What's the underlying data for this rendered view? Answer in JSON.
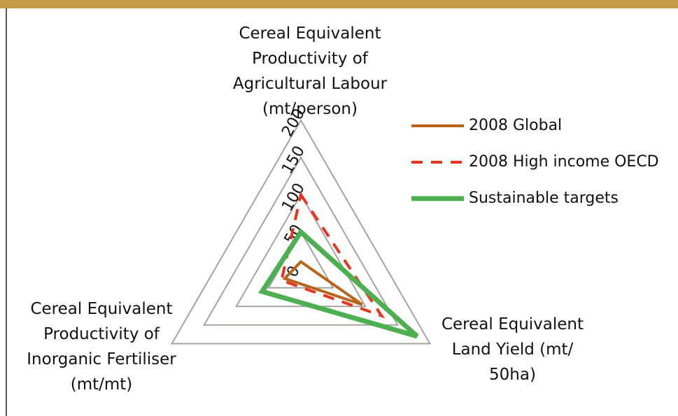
{
  "chart_data": {
    "type": "radar",
    "categories": [
      "Cereal Equivalent Productivity of Agricultural Labour (mt/person)",
      "Cereal Equivalent Land Yield (mt/ 50ha)",
      "Cereal Equivalent Productivity of Inorganic Fertiliser (mt/mt)"
    ],
    "series": [
      {
        "name": "2008 Global",
        "color": "#b8651b",
        "values": [
          10,
          95,
          25
        ]
      },
      {
        "name": "2008 High income OECD",
        "color": "#e8341c",
        "values": [
          100,
          125,
          30
        ]
      },
      {
        "name": "Sustainable targets",
        "color": "#4caf50",
        "values": [
          50,
          180,
          60
        ]
      }
    ],
    "ylim": [
      0,
      200
    ],
    "yticks": [
      0,
      50,
      100,
      150,
      200
    ],
    "grid": true,
    "legend": "right"
  }
}
